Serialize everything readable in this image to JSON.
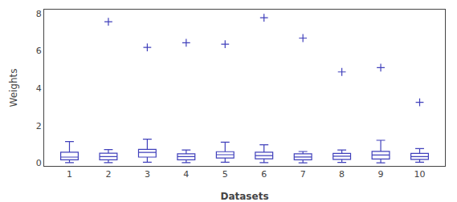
{
  "chart_data": {
    "type": "box",
    "title": "",
    "xlabel": "Datasets",
    "ylabel": "Weights",
    "xlim": [
      0.35,
      10.65
    ],
    "ylim": [
      -0.15,
      8.2
    ],
    "xticks": [
      1,
      2,
      3,
      4,
      5,
      6,
      7,
      8,
      9,
      10
    ],
    "yticks": [
      0,
      2,
      4,
      6,
      8
    ],
    "grid": false,
    "color": "#4040bb",
    "marker": "plus",
    "boxes": [
      {
        "x": 1,
        "q1": 0.18,
        "median": 0.32,
        "q3": 0.58,
        "whislo": 0.03,
        "whishi": 1.15,
        "fliers": []
      },
      {
        "x": 2,
        "q1": 0.18,
        "median": 0.35,
        "q3": 0.53,
        "whislo": 0.03,
        "whishi": 0.72,
        "fliers": [
          7.55
        ]
      },
      {
        "x": 3,
        "q1": 0.32,
        "median": 0.57,
        "q3": 0.73,
        "whislo": 0.05,
        "whishi": 1.28,
        "fliers": [
          6.18
        ]
      },
      {
        "x": 4,
        "q1": 0.18,
        "median": 0.35,
        "q3": 0.5,
        "whislo": 0.03,
        "whishi": 0.7,
        "fliers": [
          6.43
        ]
      },
      {
        "x": 5,
        "q1": 0.27,
        "median": 0.45,
        "q3": 0.61,
        "whislo": 0.05,
        "whishi": 1.12,
        "fliers": [
          6.35
        ]
      },
      {
        "x": 6,
        "q1": 0.23,
        "median": 0.4,
        "q3": 0.58,
        "whislo": 0.03,
        "whishi": 0.98,
        "fliers": [
          7.77
        ]
      },
      {
        "x": 7,
        "q1": 0.18,
        "median": 0.33,
        "q3": 0.5,
        "whislo": 0.02,
        "whishi": 0.62,
        "fliers": [
          6.68
        ]
      },
      {
        "x": 8,
        "q1": 0.2,
        "median": 0.37,
        "q3": 0.52,
        "whislo": 0.04,
        "whishi": 0.7,
        "fliers": [
          4.87
        ]
      },
      {
        "x": 9,
        "q1": 0.22,
        "median": 0.43,
        "q3": 0.63,
        "whislo": 0.02,
        "whishi": 1.22,
        "fliers": [
          5.1
        ]
      },
      {
        "x": 10,
        "q1": 0.2,
        "median": 0.35,
        "q3": 0.52,
        "whislo": 0.05,
        "whishi": 0.78,
        "fliers": [
          3.25
        ]
      }
    ]
  }
}
